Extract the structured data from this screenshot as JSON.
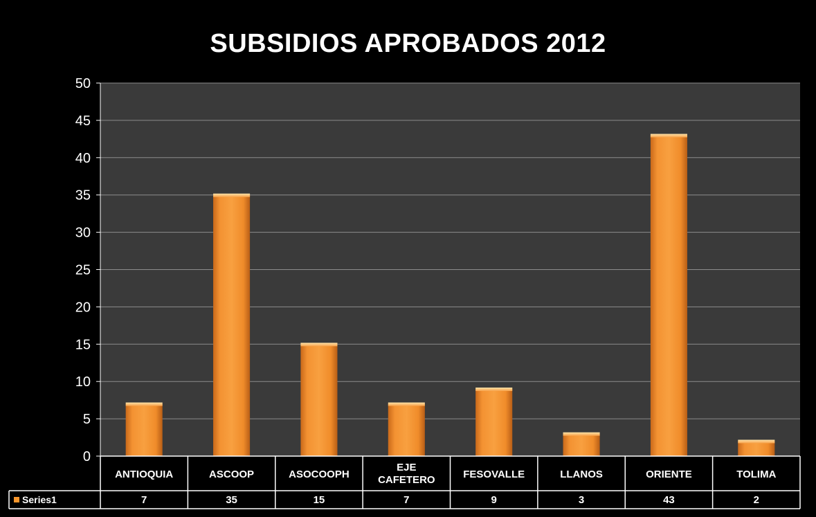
{
  "chart_data": {
    "type": "bar",
    "title": "SUBSIDIOS APROBADOS 2012",
    "categories": [
      "ANTIOQUIA",
      "ASCOOP",
      "ASOCOOPH",
      "EJE CAFETERO",
      "FESOVALLE",
      "LLANOS",
      "ORIENTE",
      "TOLIMA"
    ],
    "series": [
      {
        "name": "Series1",
        "values": [
          7,
          35,
          15,
          7,
          9,
          3,
          43,
          2
        ]
      }
    ],
    "ylim": [
      0,
      50
    ],
    "yticks": [
      0,
      5,
      10,
      15,
      20,
      25,
      30,
      35,
      40,
      45,
      50
    ],
    "grid": true,
    "legend_placement": "data-table",
    "colors": {
      "bar": "#F7962C",
      "plot_bg": "#3A3A3A",
      "grid": "#8C8C8C",
      "bg": "#000000"
    }
  }
}
